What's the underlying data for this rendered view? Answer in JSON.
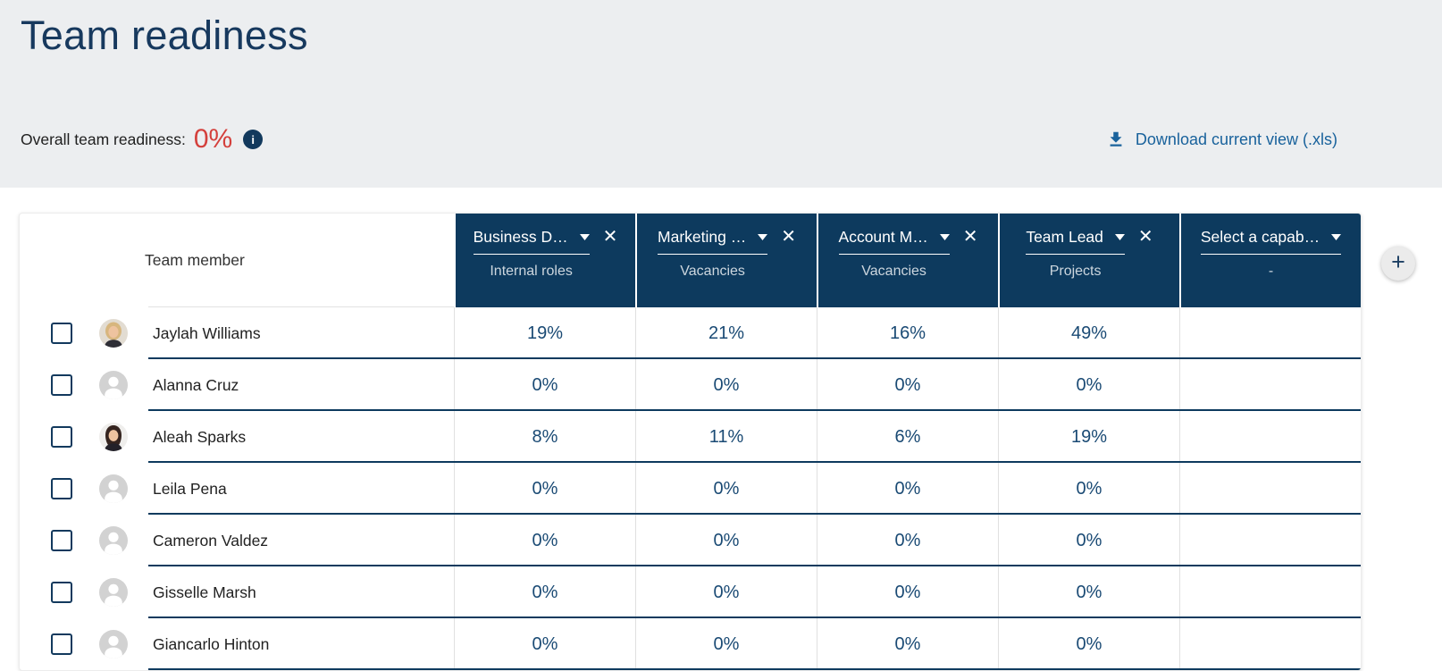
{
  "header": {
    "title": "Team readiness",
    "overall_label": "Overall team readiness:",
    "overall_value": "0%",
    "download_label": "Download current view (.xls)"
  },
  "table": {
    "member_column_header": "Team member",
    "capability_columns": [
      {
        "title": "Business D…",
        "type": "Internal roles",
        "removable": true
      },
      {
        "title": "Marketing …",
        "type": "Vacancies",
        "removable": true
      },
      {
        "title": "Account M…",
        "type": "Vacancies",
        "removable": true
      },
      {
        "title": "Team Lead",
        "type": "Projects",
        "removable": true
      },
      {
        "title": "Select a capab…",
        "type": "-",
        "removable": false
      }
    ],
    "rows": [
      {
        "name": "Jaylah Williams",
        "avatar": "photo-blonde",
        "readiness": [
          "19%",
          "21%",
          "16%",
          "49%",
          ""
        ]
      },
      {
        "name": "Alanna Cruz",
        "avatar": "placeholder",
        "readiness": [
          "0%",
          "0%",
          "0%",
          "0%",
          ""
        ]
      },
      {
        "name": "Aleah Sparks",
        "avatar": "photo-brunette",
        "readiness": [
          "8%",
          "11%",
          "6%",
          "19%",
          ""
        ]
      },
      {
        "name": "Leila Pena",
        "avatar": "placeholder",
        "readiness": [
          "0%",
          "0%",
          "0%",
          "0%",
          ""
        ]
      },
      {
        "name": "Cameron Valdez",
        "avatar": "placeholder",
        "readiness": [
          "0%",
          "0%",
          "0%",
          "0%",
          ""
        ]
      },
      {
        "name": "Gisselle Marsh",
        "avatar": "placeholder",
        "readiness": [
          "0%",
          "0%",
          "0%",
          "0%",
          ""
        ]
      },
      {
        "name": "Giancarlo Hinton",
        "avatar": "placeholder",
        "readiness": [
          "0%",
          "0%",
          "0%",
          "0%",
          ""
        ]
      }
    ]
  },
  "icons": {
    "info": "i",
    "remove": "✕",
    "add": "+"
  },
  "colors": {
    "brand_navy": "#0d3a5e",
    "accent_red": "#d4403c",
    "link_blue": "#19629c",
    "band_gray": "#eceef0"
  }
}
